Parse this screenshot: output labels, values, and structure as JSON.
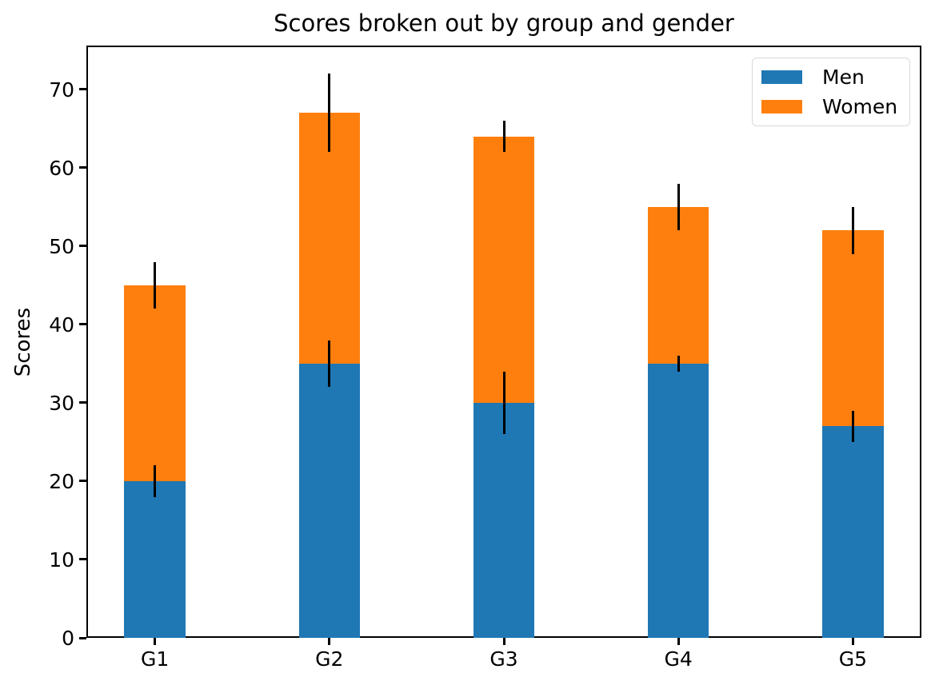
{
  "chart_data": {
    "type": "bar",
    "stacked": true,
    "title": "Scores broken out by group and gender",
    "xlabel": "",
    "ylabel": "Scores",
    "categories": [
      "G1",
      "G2",
      "G3",
      "G4",
      "G5"
    ],
    "series": [
      {
        "name": "Men",
        "color": "#1f77b4",
        "values": [
          20,
          35,
          30,
          35,
          27
        ],
        "error_std": [
          2,
          3,
          4,
          1,
          2
        ]
      },
      {
        "name": "Women",
        "color": "#ff7f0e",
        "values": [
          25,
          32,
          34,
          20,
          25
        ],
        "error_std": [
          3,
          5,
          2,
          3,
          3
        ]
      }
    ],
    "stack_totals": [
      45,
      67,
      64,
      55,
      52
    ],
    "ylim": [
      0,
      75.6
    ],
    "yticks": [
      0,
      10,
      20,
      30,
      40,
      50,
      60,
      70
    ],
    "bar_width_data_units": 0.35,
    "error_bar_color": "#000000",
    "grid": false,
    "legend": {
      "position": "upper right"
    },
    "colors": {
      "background": "#ffffff",
      "axes": "#000000",
      "legend_border": "#d9d9d9"
    }
  }
}
